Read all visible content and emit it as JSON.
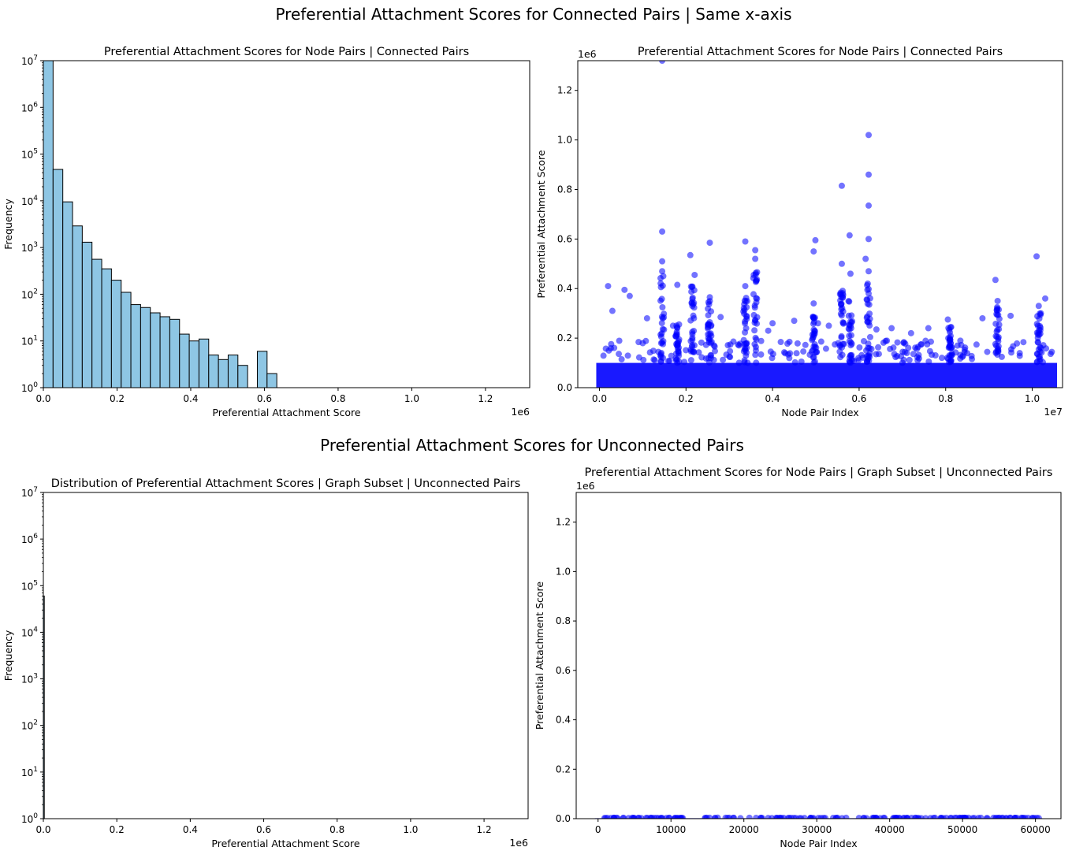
{
  "suptitle_top": "Preferential Attachment Scores for Connected Pairs | Same x-axis",
  "suptitle_bottom": "Preferential Attachment Scores for Unconnected Pairs",
  "colors": {
    "hist_fill": "#8ec6e4",
    "hist_edge": "#000000",
    "scatter": "#0000ff"
  },
  "chart_data": [
    {
      "id": "hist_connected",
      "type": "bar",
      "title": "Preferential Attachment Scores for Node Pairs | Connected Pairs",
      "xlabel": "Preferential Attachment Score",
      "ylabel": "Frequency",
      "x_offset_label": "1e6",
      "xlim": [
        0,
        1320000
      ],
      "ylim": [
        1,
        10000000
      ],
      "yscale": "log",
      "xticks": [
        0,
        200000,
        400000,
        600000,
        800000,
        1000000,
        1200000
      ],
      "xtick_labels": [
        "0.0",
        "0.2",
        "0.4",
        "0.6",
        "0.8",
        "1.0",
        "1.2"
      ],
      "yticks": [
        1,
        10,
        100,
        1000,
        10000,
        100000,
        1000000,
        10000000
      ],
      "ytick_labels": [
        "10^0",
        "10^1",
        "10^2",
        "10^3",
        "10^4",
        "10^5",
        "10^6",
        "10^7"
      ],
      "bin_width": 26400,
      "bin_starts": [
        0,
        26400,
        52800,
        79200,
        105600,
        132000,
        158400,
        184800,
        211200,
        237600,
        264000,
        290400,
        316800,
        343200,
        369600,
        396000,
        422400,
        448800,
        475200,
        501600,
        528000,
        554400,
        580800,
        607200
      ],
      "values": [
        10000000,
        47000,
        9500,
        2900,
        1300,
        560,
        350,
        200,
        110,
        60,
        52,
        40,
        33,
        29,
        14,
        10,
        11,
        5,
        4,
        5,
        3,
        1,
        6,
        2
      ]
    },
    {
      "id": "scatter_connected",
      "type": "scatter",
      "title": "Preferential Attachment Scores for Node Pairs | Connected Pairs",
      "xlabel": "Node Pair Index",
      "ylabel": "Preferential Attachment Score",
      "x_offset_label": "1e7",
      "y_offset_label": "1e6",
      "xlim": [
        -500000,
        10700000
      ],
      "ylim": [
        0,
        1320000
      ],
      "xticks": [
        0,
        2000000,
        4000000,
        6000000,
        8000000,
        10000000
      ],
      "xtick_labels": [
        "0.0",
        "0.2",
        "0.4",
        "0.6",
        "0.8",
        "1.0"
      ],
      "yticks": [
        0,
        200000,
        400000,
        600000,
        800000,
        1000000,
        1200000
      ],
      "ytick_labels": [
        "0.0",
        "0.2",
        "0.4",
        "0.6",
        "0.8",
        "1.0",
        "1.2"
      ],
      "x_extent": [
        0,
        10500000
      ],
      "baseline_level": 100000,
      "points": [
        [
          1450000,
          1320000
        ],
        [
          6220000,
          1020000
        ],
        [
          6220000,
          860000
        ],
        [
          5600000,
          815000
        ],
        [
          6220000,
          735000
        ],
        [
          1450000,
          630000
        ],
        [
          5780000,
          615000
        ],
        [
          6220000,
          600000
        ],
        [
          3370000,
          590000
        ],
        [
          2550000,
          585000
        ],
        [
          4990000,
          595000
        ],
        [
          4950000,
          550000
        ],
        [
          3600000,
          555000
        ],
        [
          2100000,
          535000
        ],
        [
          10100000,
          530000
        ],
        [
          6150000,
          520000
        ],
        [
          1450000,
          510000
        ],
        [
          5600000,
          500000
        ],
        [
          3600000,
          520000
        ],
        [
          1450000,
          470000
        ],
        [
          6220000,
          470000
        ],
        [
          2200000,
          455000
        ],
        [
          1800000,
          415000
        ],
        [
          3370000,
          410000
        ],
        [
          200000,
          410000
        ],
        [
          9150000,
          435000
        ],
        [
          5800000,
          460000
        ],
        [
          580000,
          395000
        ],
        [
          700000,
          370000
        ],
        [
          10300000,
          360000
        ],
        [
          2550000,
          365000
        ],
        [
          4950000,
          340000
        ],
        [
          6220000,
          380000
        ],
        [
          1100000,
          280000
        ],
        [
          4500000,
          270000
        ],
        [
          8050000,
          275000
        ],
        [
          9200000,
          350000
        ],
        [
          300000,
          310000
        ],
        [
          10150000,
          330000
        ],
        [
          2800000,
          285000
        ],
        [
          1700000,
          250000
        ],
        [
          4000000,
          260000
        ],
        [
          5300000,
          250000
        ],
        [
          6750000,
          240000
        ],
        [
          7600000,
          240000
        ],
        [
          8850000,
          280000
        ],
        [
          9500000,
          290000
        ],
        [
          10200000,
          300000
        ],
        [
          3900000,
          230000
        ],
        [
          5050000,
          260000
        ],
        [
          6400000,
          235000
        ],
        [
          7200000,
          220000
        ]
      ],
      "clusters": [
        {
          "x": 1450000,
          "ymax": 480000
        },
        {
          "x": 2150000,
          "ymax": 420000
        },
        {
          "x": 2550000,
          "ymax": 360000
        },
        {
          "x": 3370000,
          "ymax": 380000
        },
        {
          "x": 3600000,
          "ymax": 470000
        },
        {
          "x": 5600000,
          "ymax": 400000
        },
        {
          "x": 5800000,
          "ymax": 380000
        },
        {
          "x": 6220000,
          "ymax": 450000
        },
        {
          "x": 9200000,
          "ymax": 330000
        },
        {
          "x": 10150000,
          "ymax": 300000
        },
        {
          "x": 8100000,
          "ymax": 250000
        },
        {
          "x": 4950000,
          "ymax": 300000
        },
        {
          "x": 1800000,
          "ymax": 260000
        }
      ]
    },
    {
      "id": "hist_unconnected",
      "type": "bar",
      "title": "Distribution of Preferential Attachment Scores | Graph Subset | Unconnected Pairs",
      "xlabel": "Preferential Attachment Score",
      "ylabel": "Frequency",
      "x_offset_label": "1e6",
      "xlim": [
        0,
        1320000
      ],
      "ylim": [
        1,
        10000000
      ],
      "yscale": "log",
      "xticks": [
        0,
        200000,
        400000,
        600000,
        800000,
        1000000,
        1200000
      ],
      "xtick_labels": [
        "0.0",
        "0.2",
        "0.4",
        "0.6",
        "0.8",
        "1.0",
        "1.2"
      ],
      "yticks": [
        1,
        10,
        100,
        1000,
        10000,
        100000,
        1000000,
        10000000
      ],
      "ytick_labels": [
        "10^0",
        "10^1",
        "10^2",
        "10^3",
        "10^4",
        "10^5",
        "10^6",
        "10^7"
      ],
      "bin_width": 1200,
      "bin_starts": [
        0
      ],
      "values": [
        60000
      ]
    },
    {
      "id": "scatter_unconnected",
      "type": "scatter",
      "title": "Preferential Attachment Scores for Node Pairs | Graph Subset | Unconnected Pairs",
      "xlabel": "Node Pair Index",
      "ylabel": "Preferential Attachment Score",
      "y_offset_label": "1e6",
      "xlim": [
        -3000,
        63500
      ],
      "ylim": [
        0,
        1320000
      ],
      "xticks": [
        0,
        10000,
        20000,
        30000,
        40000,
        50000,
        60000
      ],
      "xtick_labels": [
        "0",
        "10000",
        "20000",
        "30000",
        "40000",
        "50000",
        "60000"
      ],
      "yticks": [
        0,
        200000,
        400000,
        600000,
        800000,
        1000000,
        1200000
      ],
      "ytick_labels": [
        "0.0",
        "0.2",
        "0.4",
        "0.6",
        "0.8",
        "1.0",
        "1.2"
      ],
      "x_extent": [
        0,
        60500
      ],
      "baseline_level": 2000,
      "points": [],
      "clusters": []
    }
  ]
}
